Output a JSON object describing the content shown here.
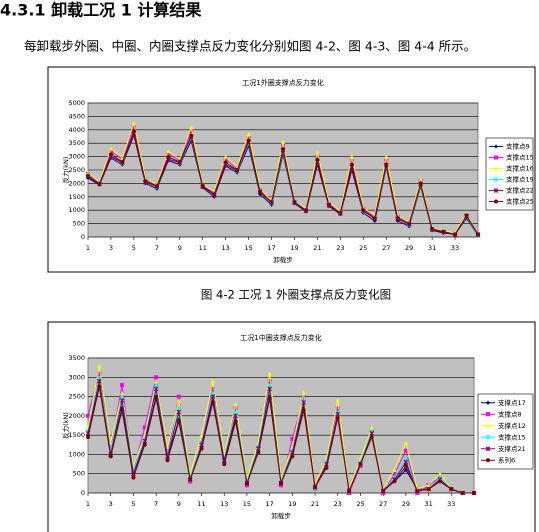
{
  "heading": "4.3.1  卸载工况 1 计算结果",
  "paragraph": "每卸载步外圈、中圈、内圈支撑点反力变化分别如图 4-2、图 4-3、图 4-4 所示。",
  "captions": [
    "图 4-2   工况 1 外圈支撑点反力变化图"
  ],
  "chart_data": [
    {
      "type": "line",
      "title": "工况1外圈支撑点反力变化",
      "xlabel": "卸载步",
      "ylabel": "反力(kN)",
      "grid": true,
      "legend": "right",
      "x": [
        1,
        2,
        3,
        4,
        5,
        6,
        7,
        8,
        9,
        10,
        11,
        12,
        13,
        14,
        15,
        16,
        17,
        18,
        19,
        20,
        21,
        22,
        23,
        24,
        25,
        26,
        27,
        28,
        29,
        30,
        31,
        32,
        33,
        34,
        35
      ],
      "xlim": [
        1,
        35
      ],
      "xticks": [
        1,
        3,
        5,
        7,
        9,
        11,
        13,
        15,
        17,
        19,
        21,
        23,
        25,
        27,
        29,
        31,
        33
      ],
      "ylim": [
        0,
        5000
      ],
      "yticks": [
        0,
        500,
        1000,
        1500,
        2000,
        2500,
        3000,
        3500,
        4000,
        4500,
        5000
      ],
      "series": [
        {
          "name": "支撑点9",
          "color": "#000080",
          "values": [
            2200,
            1950,
            2950,
            2700,
            3800,
            2000,
            1800,
            2850,
            2700,
            3600,
            1850,
            1500,
            2650,
            2400,
            3400,
            1600,
            1200,
            3100,
            1250,
            950,
            2700,
            1150,
            850,
            2500,
            900,
            600,
            2600,
            600,
            400,
            1900,
            250,
            150,
            100,
            700,
            50
          ]
        },
        {
          "name": "支撑点15",
          "color": "#ff00ff",
          "values": [
            2350,
            2000,
            3200,
            2900,
            4100,
            2150,
            1900,
            3100,
            2850,
            3950,
            1900,
            1650,
            2900,
            2550,
            3700,
            1750,
            1300,
            3400,
            1300,
            1000,
            3000,
            1250,
            900,
            2850,
            1050,
            750,
            2850,
            750,
            500,
            2100,
            300,
            200,
            100,
            800,
            100
          ]
        },
        {
          "name": "支撑点16",
          "color": "#ffff00",
          "values": [
            2400,
            2050,
            3300,
            2950,
            4250,
            2200,
            1950,
            3200,
            2900,
            4100,
            1950,
            1700,
            3000,
            2600,
            3850,
            1800,
            1350,
            3550,
            1300,
            1050,
            3150,
            1300,
            950,
            3000,
            1100,
            800,
            3000,
            800,
            550,
            2150,
            350,
            250,
            150,
            850,
            100
          ]
        },
        {
          "name": "支撑点19",
          "color": "#00ffff",
          "values": [
            2300,
            2000,
            3050,
            2750,
            3900,
            2100,
            1850,
            2950,
            2750,
            3700,
            1900,
            1600,
            2750,
            2450,
            3500,
            1700,
            1250,
            3200,
            1300,
            1000,
            2850,
            1200,
            900,
            2650,
            950,
            700,
            2650,
            700,
            450,
            1950,
            300,
            200,
            100,
            750,
            50
          ]
        },
        {
          "name": "支撑点22",
          "color": "#800080",
          "values": [
            2250,
            1980,
            3000,
            2780,
            3850,
            2050,
            1880,
            2900,
            2780,
            3750,
            1880,
            1580,
            2700,
            2480,
            3550,
            1680,
            1280,
            3250,
            1280,
            980,
            2800,
            1180,
            880,
            2600,
            980,
            680,
            2680,
            680,
            480,
            1980,
            280,
            180,
            80,
            780,
            80
          ]
        },
        {
          "name": "支撑点25",
          "color": "#800000",
          "values": [
            2280,
            1990,
            3080,
            2800,
            3950,
            2080,
            1900,
            2980,
            2800,
            3780,
            1900,
            1600,
            2780,
            2500,
            3600,
            1700,
            1300,
            3280,
            1300,
            1000,
            2880,
            1200,
            900,
            2700,
            1000,
            700,
            2700,
            700,
            500,
            2000,
            300,
            200,
            100,
            800,
            100
          ]
        }
      ]
    },
    {
      "type": "line",
      "title": "工况1中圈支撑点反力变化",
      "xlabel": "卸载步",
      "ylabel": "反力(kN)",
      "grid": true,
      "legend": "right",
      "x": [
        1,
        2,
        3,
        4,
        5,
        6,
        7,
        8,
        9,
        10,
        11,
        12,
        13,
        14,
        15,
        16,
        17,
        18,
        19,
        20,
        21,
        22,
        23,
        24,
        25,
        26,
        27,
        28,
        29,
        30,
        31,
        32,
        33,
        34,
        35
      ],
      "xlim": [
        1,
        35
      ],
      "xticks": [
        1,
        3,
        5,
        7,
        9,
        11,
        13,
        15,
        17,
        19,
        21,
        23,
        25,
        27,
        29,
        31,
        33
      ],
      "ylim": [
        0,
        3500
      ],
      "yticks": [
        0,
        500,
        1000,
        1500,
        2000,
        2500,
        3000,
        3500
      ],
      "series": [
        {
          "name": "支撑点17",
          "color": "#000080",
          "values": [
            1500,
            2800,
            1000,
            2200,
            500,
            1300,
            2500,
            900,
            1900,
            400,
            1200,
            2400,
            800,
            1900,
            300,
            1100,
            2500,
            300,
            1000,
            2200,
            200,
            700,
            2000,
            100,
            800,
            1500,
            100,
            300,
            600,
            100,
            100,
            300,
            100,
            0,
            0
          ]
        },
        {
          "name": "支撑点8",
          "color": "#ff00ff",
          "values": [
            2000,
            3100,
            1200,
            2800,
            600,
            1700,
            3000,
            1000,
            2500,
            300,
            1300,
            2700,
            900,
            2200,
            200,
            1200,
            2900,
            200,
            1400,
            2500,
            100,
            800,
            2200,
            0,
            700,
            1600,
            0,
            500,
            1100,
            0,
            200,
            400,
            100,
            0,
            0
          ]
        },
        {
          "name": "支撑点12",
          "color": "#ffff00",
          "values": [
            1700,
            3300,
            1300,
            2600,
            700,
            1500,
            2900,
            1200,
            2400,
            500,
            1500,
            2900,
            1000,
            2300,
            400,
            1300,
            3100,
            400,
            1200,
            2600,
            200,
            900,
            2400,
            100,
            900,
            1700,
            100,
            600,
            1300,
            100,
            200,
            500,
            100,
            0,
            0
          ]
        },
        {
          "name": "支撑点15",
          "color": "#00ffff",
          "values": [
            1600,
            3000,
            1100,
            2500,
            600,
            1400,
            2800,
            1000,
            2200,
            400,
            1300,
            2600,
            900,
            2100,
            300,
            1200,
            2800,
            300,
            1100,
            2400,
            100,
            800,
            2100,
            50,
            800,
            1600,
            50,
            400,
            900,
            50,
            100,
            400,
            100,
            0,
            0
          ]
        },
        {
          "name": "支撑点21",
          "color": "#800080",
          "values": [
            1550,
            2900,
            1000,
            2400,
            500,
            1350,
            2700,
            950,
            2100,
            350,
            1250,
            2500,
            850,
            2000,
            250,
            1150,
            2700,
            250,
            1050,
            2350,
            150,
            750,
            2050,
            50,
            750,
            1550,
            50,
            350,
            800,
            50,
            100,
            350,
            100,
            0,
            0
          ]
        },
        {
          "name": "系列6",
          "color": "#800000",
          "values": [
            1450,
            2750,
            950,
            2150,
            400,
            1250,
            2450,
            850,
            1850,
            350,
            1150,
            2350,
            750,
            1850,
            250,
            1050,
            2450,
            250,
            950,
            2150,
            150,
            650,
            1950,
            50,
            750,
            1450,
            50,
            300,
            700,
            50,
            100,
            300,
            100,
            0,
            0
          ]
        }
      ]
    }
  ]
}
